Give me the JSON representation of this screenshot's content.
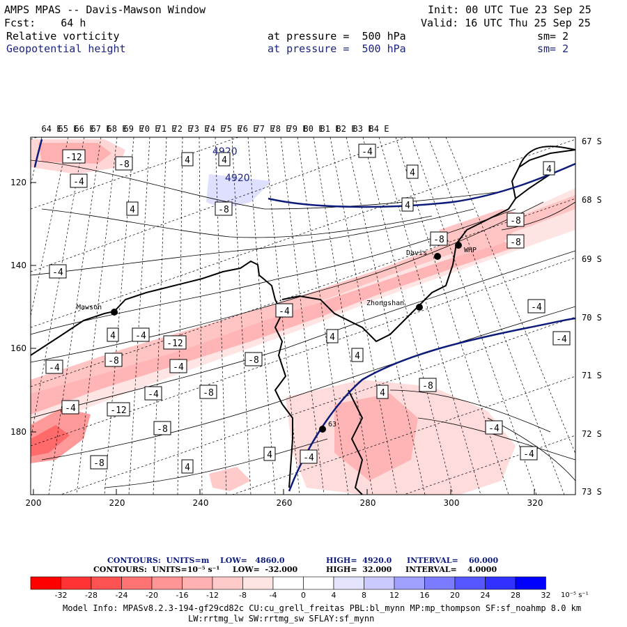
{
  "header": {
    "model": "AMPS MPAS -- Davis-Mawson Window",
    "init": "Init: 00 UTC Tue 23 Sep 25",
    "fcst": "Fcst:    64 h",
    "valid": "Valid: 16 UTC Thu 25 Sep 25",
    "field1": {
      "name": "Relative vorticity",
      "level": "at pressure =  500 hPa",
      "sm": "sm= 2"
    },
    "field2": {
      "name": "Geopotential height",
      "level": "at pressure =  500 hPa",
      "sm": "sm= 2"
    }
  },
  "axes": {
    "top_lon": [
      "64 E",
      "65 E",
      "66 E",
      "67 E",
      "68 E",
      "69 E",
      "70 E",
      "71 E",
      "72 E",
      "73 E",
      "74 E",
      "75 E",
      "76 E",
      "77 E",
      "78 E",
      "79 E",
      "80 E",
      "81 E",
      "82 E",
      "83 E",
      "84 E"
    ],
    "right_lat": [
      "67 S",
      "68 S",
      "69 S",
      "70 S",
      "71 S",
      "72 S",
      "73 S"
    ],
    "bottom_x": [
      "200",
      "220",
      "240",
      "260",
      "280",
      "300",
      "320"
    ],
    "left_y": [
      "120",
      "140",
      "160",
      "180"
    ]
  },
  "stations": [
    {
      "name": "Mawson"
    },
    {
      "name": "Davis"
    },
    {
      "name": "WHP"
    },
    {
      "name": "Zhongshan"
    },
    {
      "name": "63"
    }
  ],
  "height_contours": [
    "4920",
    "4920"
  ],
  "vort_labels": [
    "-12",
    "-8",
    "-4",
    "4",
    "-4",
    "4",
    "4",
    "-4",
    "4",
    "-8",
    "-8",
    "4",
    "-8",
    "4",
    "-4",
    "-8",
    "-4",
    "-8",
    "4",
    "4",
    "-12",
    "-4",
    "-8",
    "-4",
    "-4",
    "-8",
    "-4",
    "-4",
    "-12",
    "-8",
    "-8",
    "4",
    "4",
    "-4",
    "-8",
    "-4",
    "-4",
    "-4",
    "-4",
    "4",
    "4"
  ],
  "footer": {
    "contours1": {
      "label": "CONTOURS:  UNITS=m",
      "low": "LOW=   4860.0",
      "high": "HIGH=  4920.0",
      "interval": "INTERVAL=    60.000"
    },
    "contours2": {
      "label": "CONTOURS:  UNITS=10⁻⁵ s⁻¹",
      "low": "LOW=  -32.000",
      "high": "HIGH=  32.000",
      "interval": "INTERVAL=    4.0000"
    },
    "colorbar_ticks": [
      "-32",
      "-28",
      "-24",
      "-20",
      "-16",
      "-12",
      "-8",
      "-4",
      "0",
      "4",
      "8",
      "12",
      "16",
      "20",
      "24",
      "28",
      "32"
    ],
    "colorbar_unit": "10⁻⁵ s⁻¹",
    "colorbar_colors": [
      "#ff0000",
      "#ff3333",
      "#ff5252",
      "#ff7373",
      "#ff9595",
      "#ffb2b2",
      "#ffcaca",
      "#ffe4e4",
      "#ffffff",
      "#ffffff",
      "#e4e4ff",
      "#cacaff",
      "#a0a0ff",
      "#7b7bff",
      "#5656ff",
      "#3030ff",
      "#0000ff"
    ],
    "model_info": "Model Info: MPASv8.2.3-194-gf29cd82c CU:cu_grell_freitas PBL:bl_mynn MP:mp_thompson SF:sf_noahmp 8.0 km",
    "model_info2": "LW:rrtmg_lw SW:rrtmg_sw SFLAY:sf_mynn"
  }
}
